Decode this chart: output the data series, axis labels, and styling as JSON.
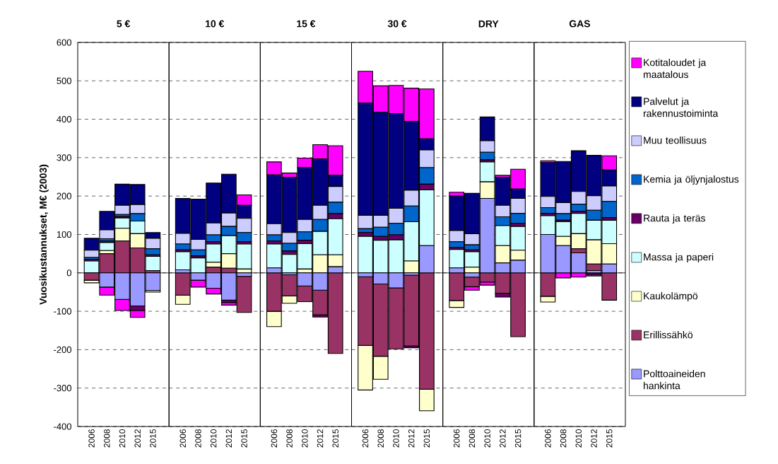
{
  "chart_data": [
    {
      "type": "bar",
      "stacked": true,
      "title": "5 €",
      "ylabel": "Vuosikustannukset, M€ (2003)",
      "categories": [
        "2006",
        "2008",
        "2010",
        "2012",
        "2015"
      ],
      "ylim": [
        -400,
        600
      ],
      "yticks": [
        -400,
        -300,
        -200,
        -100,
        0,
        100,
        200,
        300,
        400,
        500,
        600
      ],
      "grid": "y",
      "series": [
        {
          "color": "#9999ff",
          "values": [
            0,
            -37,
            -69,
            -86,
            -46
          ]
        },
        {
          "color": "#993366",
          "values": [
            -19,
            50,
            83,
            65,
            6
          ]
        },
        {
          "color": "#ffffcc",
          "values": [
            -7,
            8,
            33,
            37,
            -4
          ]
        },
        {
          "color": "#ccffff",
          "values": [
            31,
            21,
            27,
            33,
            37
          ]
        },
        {
          "color": "#660066",
          "values": [
            4,
            4,
            4,
            -12,
            4
          ]
        },
        {
          "color": "#0066cc",
          "values": [
            5,
            6,
            5,
            19,
            16
          ]
        },
        {
          "color": "#ccccff",
          "values": [
            19,
            23,
            24,
            24,
            27
          ]
        },
        {
          "color": "#000080",
          "values": [
            31,
            48,
            55,
            52,
            15
          ]
        },
        {
          "color": "#ff00ff",
          "values": [
            0,
            -21,
            -29,
            -18,
            0
          ]
        }
      ]
    },
    {
      "type": "bar",
      "stacked": true,
      "title": "10 €",
      "tick_labels": "x",
      "categories": [
        "2006",
        "2008",
        "2010",
        "2012",
        "2015"
      ],
      "ylim": [
        -400,
        600
      ],
      "yticks": [
        -400,
        -300,
        -200,
        -100,
        0,
        100,
        200,
        300,
        400,
        500,
        600
      ],
      "grid": "y",
      "series": [
        {
          "color": "#9999ff",
          "values": [
            8,
            -19,
            -40,
            -71,
            -9
          ]
        },
        {
          "color": "#993366",
          "values": [
            -58,
            0,
            15,
            12,
            -94
          ]
        },
        {
          "color": "#ffffcc",
          "values": [
            -24,
            0,
            13,
            38,
            10
          ]
        },
        {
          "color": "#ccffff",
          "values": [
            47,
            39,
            47,
            47,
            65
          ]
        },
        {
          "color": "#660066",
          "values": [
            5,
            5,
            6,
            -6,
            6
          ]
        },
        {
          "color": "#0066cc",
          "values": [
            15,
            16,
            18,
            24,
            24
          ]
        },
        {
          "color": "#ccccff",
          "values": [
            28,
            27,
            31,
            35,
            37
          ]
        },
        {
          "color": "#000080",
          "values": [
            91,
            105,
            104,
            101,
            34
          ]
        },
        {
          "color": "#ff00ff",
          "values": [
            0,
            -18,
            -15,
            -7,
            27
          ]
        }
      ]
    },
    {
      "type": "bar",
      "stacked": true,
      "title": "15 €",
      "tick_labels": "x",
      "categories": [
        "2006",
        "2008",
        "2010",
        "2012",
        "2015"
      ],
      "ylim": [
        -400,
        600
      ],
      "yticks": [
        -400,
        -300,
        -200,
        -100,
        0,
        100,
        200,
        300,
        400,
        500,
        600
      ],
      "grid": "y",
      "series": [
        {
          "color": "#9999ff",
          "values": [
            13,
            -5,
            -34,
            -45,
            16
          ]
        },
        {
          "color": "#993366",
          "values": [
            -100,
            -55,
            -41,
            -64,
            -210
          ]
        },
        {
          "color": "#ffffcc",
          "values": [
            -40,
            -19,
            10,
            47,
            31
          ]
        },
        {
          "color": "#ccffff",
          "values": [
            62,
            48,
            66,
            61,
            94
          ]
        },
        {
          "color": "#660066",
          "values": [
            8,
            9,
            9,
            -6,
            13
          ]
        },
        {
          "color": "#0066cc",
          "values": [
            16,
            20,
            22,
            31,
            30
          ]
        },
        {
          "color": "#ccccff",
          "values": [
            29,
            28,
            32,
            37,
            41
          ]
        },
        {
          "color": "#000080",
          "values": [
            127,
            143,
            135,
            121,
            29
          ]
        },
        {
          "color": "#ff00ff",
          "values": [
            34,
            12,
            25,
            37,
            77
          ]
        }
      ]
    },
    {
      "type": "bar",
      "stacked": true,
      "title": "30 €",
      "tick_labels": "x",
      "categories": [
        "2006",
        "2008",
        "2010",
        "2012",
        "2015"
      ],
      "ylim": [
        -400,
        600
      ],
      "yticks": [
        -400,
        -300,
        -200,
        -100,
        0,
        100,
        200,
        300,
        400,
        500,
        600
      ],
      "grid": "y",
      "series": [
        {
          "color": "#9999ff",
          "values": [
            -10,
            -29,
            -39,
            -6,
            71
          ]
        },
        {
          "color": "#993366",
          "values": [
            -179,
            -188,
            -159,
            -184,
            -303
          ]
        },
        {
          "color": "#ffffcc",
          "values": [
            -116,
            -60,
            0,
            31,
            -56
          ]
        },
        {
          "color": "#ccffff",
          "values": [
            95,
            85,
            86,
            102,
            145
          ]
        },
        {
          "color": "#660066",
          "values": [
            10,
            10,
            13,
            -5,
            15
          ]
        },
        {
          "color": "#0066cc",
          "values": [
            10,
            24,
            30,
            41,
            43
          ]
        },
        {
          "color": "#ccccff",
          "values": [
            35,
            31,
            39,
            41,
            46
          ]
        },
        {
          "color": "#000080",
          "values": [
            292,
            268,
            247,
            179,
            29
          ]
        },
        {
          "color": "#ff00ff",
          "values": [
            83,
            69,
            73,
            87,
            130
          ]
        }
      ]
    },
    {
      "type": "bar",
      "stacked": true,
      "title": "DRY",
      "tick_labels": "x",
      "categories": [
        "2006",
        "2008",
        "2010",
        "2012",
        "2015"
      ],
      "ylim": [
        -400,
        600
      ],
      "yticks": [
        -400,
        -300,
        -200,
        -100,
        0,
        100,
        200,
        300,
        400,
        500,
        600
      ],
      "grid": "y",
      "series": [
        {
          "color": "#9999ff",
          "values": [
            13,
            -11,
            194,
            26,
            33
          ]
        },
        {
          "color": "#993366",
          "values": [
            -72,
            -25,
            -24,
            -53,
            -166
          ]
        },
        {
          "color": "#ffffcc",
          "values": [
            -18,
            15,
            43,
            45,
            26
          ]
        },
        {
          "color": "#ccffff",
          "values": [
            48,
            40,
            52,
            52,
            62
          ]
        },
        {
          "color": "#660066",
          "values": [
            5,
            5,
            5,
            -10,
            8
          ]
        },
        {
          "color": "#0066cc",
          "values": [
            15,
            13,
            20,
            23,
            26
          ]
        },
        {
          "color": "#ccccff",
          "values": [
            29,
            29,
            30,
            30,
            39
          ]
        },
        {
          "color": "#000080",
          "values": [
            90,
            105,
            62,
            72,
            24
          ]
        },
        {
          "color": "#ff00ff",
          "values": [
            10,
            -9,
            -8,
            6,
            52
          ]
        }
      ]
    },
    {
      "type": "bar",
      "stacked": true,
      "title": "GAS",
      "tick_labels": "x",
      "legend": "right",
      "categories": [
        "2006",
        "2008",
        "2010",
        "2012",
        "2015"
      ],
      "ylim": [
        -400,
        600
      ],
      "yticks": [
        -400,
        -300,
        -200,
        -100,
        0,
        100,
        200,
        300,
        400,
        500,
        600
      ],
      "grid": "y",
      "series": [
        {
          "name": "Polttoaineiden hankinta",
          "color": "#9999ff",
          "values": [
            100,
            71,
            52,
            6,
            23
          ]
        },
        {
          "name": "Erillissähkö",
          "color": "#993366",
          "values": [
            -61,
            0,
            11,
            17,
            -71
          ]
        },
        {
          "name": "Kaukolämpö",
          "color": "#ffffcc",
          "values": [
            -15,
            24,
            39,
            63,
            53
          ]
        },
        {
          "name": "Massa ja paperi",
          "color": "#ccffff",
          "values": [
            49,
            38,
            53,
            51,
            61
          ]
        },
        {
          "name": "Rauta ja teräs",
          "color": "#660066",
          "values": [
            6,
            4,
            5,
            -4,
            7
          ]
        },
        {
          "name": "Kemia ja öljynjalostus",
          "color": "#0066cc",
          "values": [
            15,
            17,
            19,
            26,
            42
          ]
        },
        {
          "name": "Muu teollisuus",
          "color": "#ccccff",
          "values": [
            29,
            29,
            33,
            38,
            40
          ]
        },
        {
          "name": "Palvelut ja rakennustoiminta",
          "color": "#000080",
          "values": [
            88,
            107,
            106,
            105,
            42
          ]
        },
        {
          "name": "Kotitaloudet ja maatalous",
          "color": "#ff00ff",
          "values": [
            5,
            -13,
            -11,
            -4,
            37
          ]
        }
      ]
    }
  ]
}
